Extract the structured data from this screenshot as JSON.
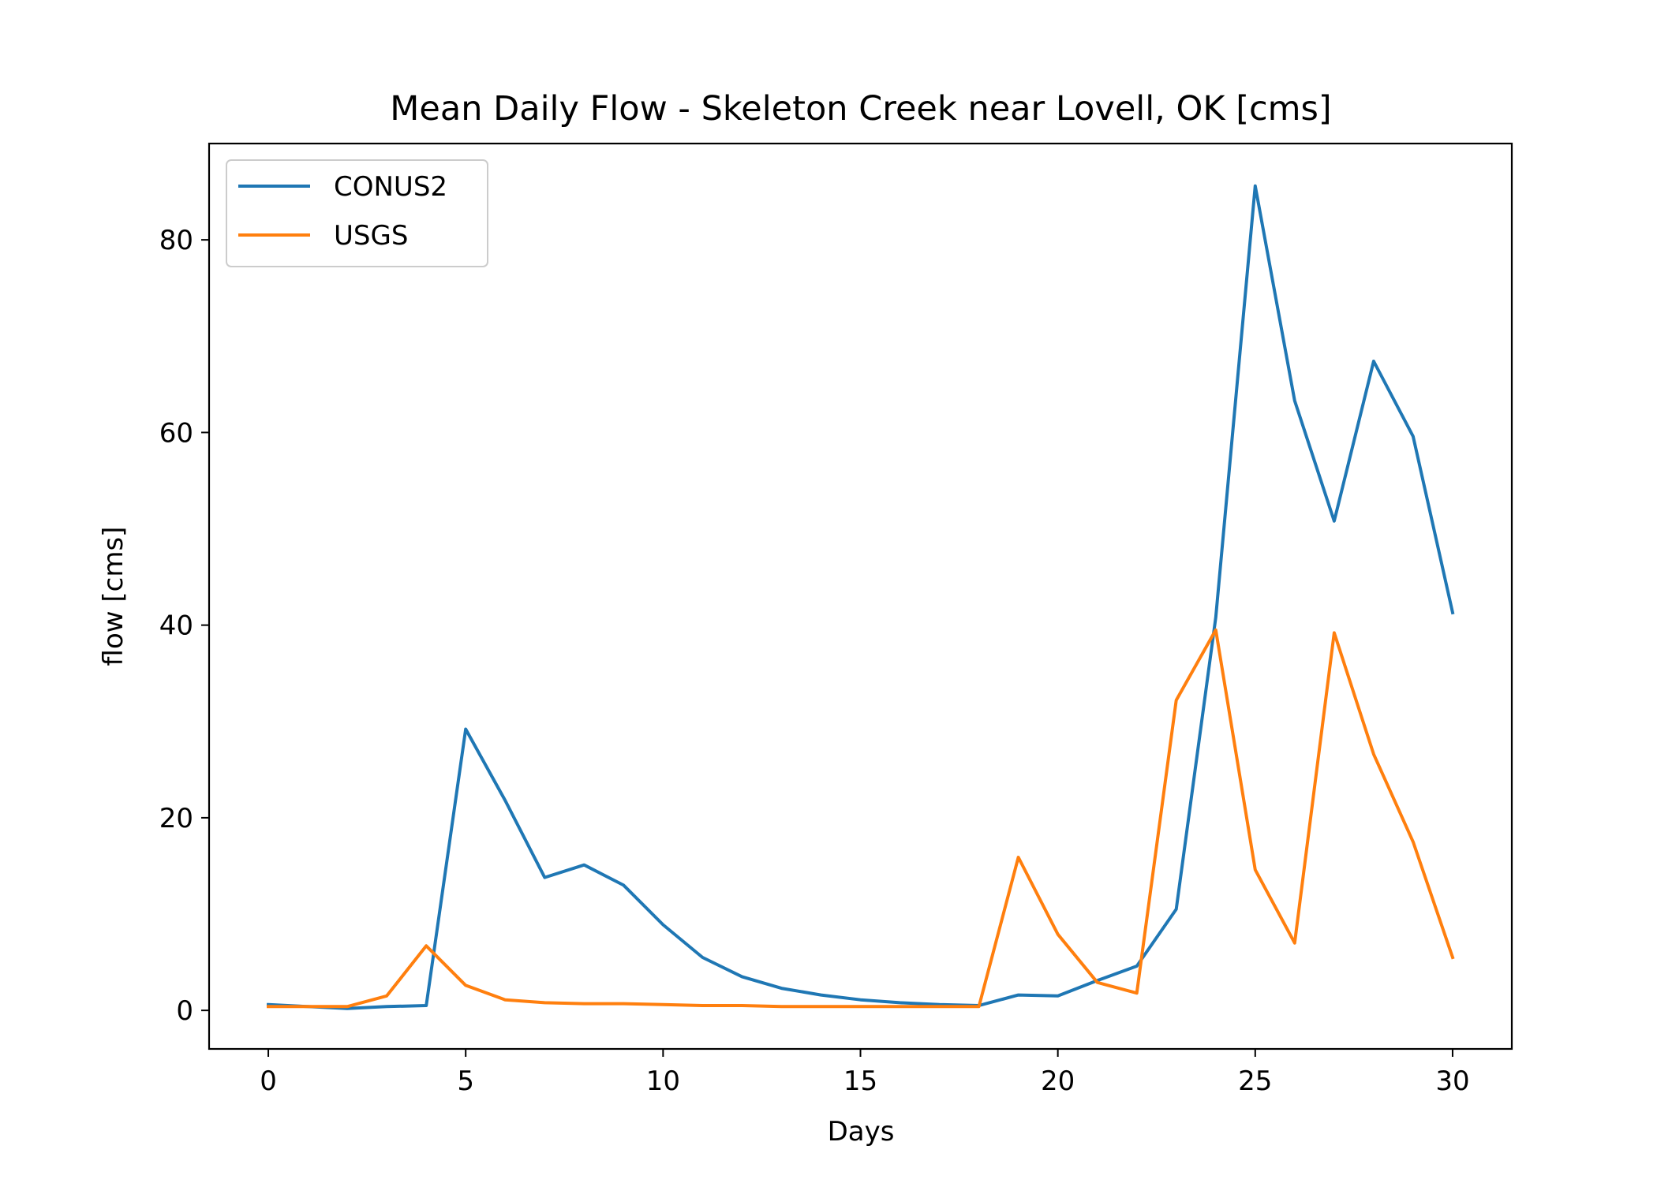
{
  "chart_data": {
    "type": "line",
    "title": "Mean Daily Flow - Skeleton Creek near Lovell, OK [cms]",
    "xlabel": "Days",
    "ylabel": "flow [cms]",
    "xlim": [
      -1.5,
      31.5
    ],
    "ylim": [
      -4,
      90
    ],
    "xticks": [
      0,
      5,
      10,
      15,
      20,
      25,
      30
    ],
    "yticks": [
      0,
      20,
      40,
      60,
      80
    ],
    "grid": false,
    "legend_position": "top-left",
    "x": [
      0,
      1,
      2,
      3,
      4,
      5,
      6,
      7,
      8,
      9,
      10,
      11,
      12,
      13,
      14,
      15,
      16,
      17,
      18,
      19,
      20,
      21,
      22,
      23,
      24,
      25,
      26,
      27,
      28,
      29,
      30
    ],
    "series": [
      {
        "name": "CONUS2",
        "color": "#1f77b4",
        "values": [
          0.6,
          0.4,
          0.2,
          0.4,
          0.5,
          29.2,
          21.8,
          13.8,
          15.1,
          13.0,
          8.9,
          5.5,
          3.5,
          2.3,
          1.6,
          1.1,
          0.8,
          0.6,
          0.5,
          1.6,
          1.5,
          3.1,
          4.6,
          10.5,
          40.8,
          85.6,
          63.3,
          50.8,
          67.4,
          59.6,
          41.3
        ]
      },
      {
        "name": "USGS",
        "color": "#ff7f0e",
        "values": [
          0.4,
          0.4,
          0.4,
          1.5,
          6.7,
          2.6,
          1.1,
          0.8,
          0.7,
          0.7,
          0.6,
          0.5,
          0.5,
          0.4,
          0.4,
          0.4,
          0.4,
          0.4,
          0.4,
          15.9,
          7.9,
          2.9,
          1.8,
          32.2,
          39.5,
          14.6,
          7.0,
          39.2,
          26.6,
          17.5,
          5.5
        ]
      }
    ]
  }
}
